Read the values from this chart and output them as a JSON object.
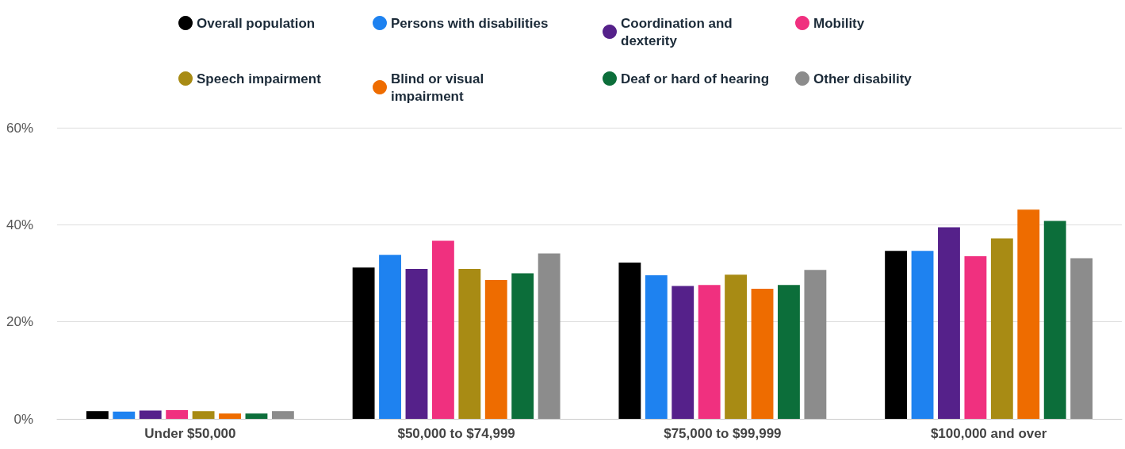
{
  "chart_data": {
    "type": "bar",
    "categories": [
      "Under $50,000",
      "$50,000 to $74,999",
      "$75,000 to $99,999",
      "$100,000 and over"
    ],
    "series": [
      {
        "name": "Overall population",
        "color": "#000000",
        "values": [
          1.6,
          31.2,
          32.2,
          34.6
        ]
      },
      {
        "name": "Persons with disabilities",
        "color": "#1e82f0",
        "values": [
          1.5,
          33.8,
          29.6,
          34.6
        ]
      },
      {
        "name": "Coordination and dexterity",
        "color": "#55218a",
        "values": [
          1.7,
          30.9,
          27.4,
          39.5
        ]
      },
      {
        "name": "Mobility",
        "color": "#f0307f",
        "values": [
          1.8,
          36.7,
          27.6,
          33.5
        ]
      },
      {
        "name": "Speech impairment",
        "color": "#a88b14",
        "values": [
          1.6,
          30.9,
          29.7,
          37.2
        ]
      },
      {
        "name": "Blind or visual impairment",
        "color": "#ee6c00",
        "values": [
          1.1,
          28.6,
          26.8,
          43.1
        ]
      },
      {
        "name": "Deaf or hard of hearing",
        "color": "#0c6e3a",
        "values": [
          1.1,
          30.0,
          27.6,
          40.8
        ]
      },
      {
        "name": "Other disability",
        "color": "#8c8c8c",
        "values": [
          1.6,
          34.1,
          30.7,
          33.1
        ]
      }
    ],
    "ylim": [
      0,
      60
    ],
    "yticks": [
      {
        "value": 0,
        "label": "0%"
      },
      {
        "value": 20,
        "label": "20%"
      },
      {
        "value": 40,
        "label": "40%"
      },
      {
        "value": 60,
        "label": "60%"
      }
    ],
    "grid": "y",
    "legend": "top"
  }
}
